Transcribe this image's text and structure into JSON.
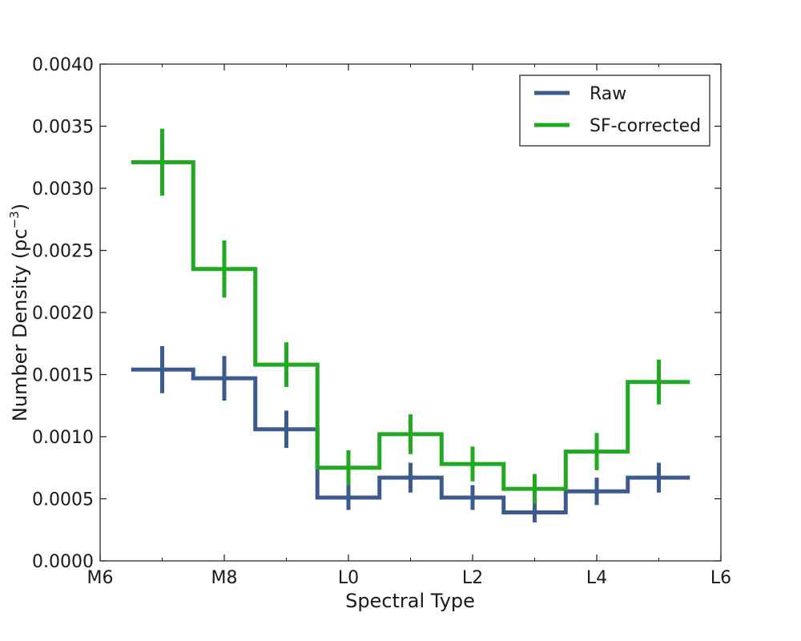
{
  "chart_data": {
    "type": "line",
    "subtype": "step-with-errorbars",
    "title": "",
    "xlabel": "Spectral Type",
    "ylabel": "Number Density (pc",
    "ylabel_superscript": "−3",
    "ylabel_suffix": ")",
    "x_ticks": [
      {
        "value": 6,
        "label": "M6"
      },
      {
        "value": 8,
        "label": "M8"
      },
      {
        "value": 10,
        "label": "L0"
      },
      {
        "value": 12,
        "label": "L2"
      },
      {
        "value": 14,
        "label": "L4"
      },
      {
        "value": 16,
        "label": "L6"
      }
    ],
    "y_ticks": [
      "0.0000",
      "0.0005",
      "0.0010",
      "0.0015",
      "0.0020",
      "0.0025",
      "0.0030",
      "0.0035",
      "0.0040"
    ],
    "xlim": [
      6,
      16
    ],
    "ylim": [
      0,
      0.004
    ],
    "grid": false,
    "legend_position": "top-right",
    "x": [
      7,
      8,
      9,
      10,
      11,
      12,
      13,
      14,
      15
    ],
    "series": [
      {
        "name": "Raw",
        "color": "#3d5a8e",
        "values": [
          0.00154,
          0.00147,
          0.00106,
          0.00051,
          0.00067,
          0.00051,
          0.00039,
          0.00056,
          0.00067
        ],
        "errors": [
          0.00019,
          0.00018,
          0.00015,
          0.0001,
          0.00012,
          0.0001,
          8e-05,
          0.00011,
          0.00012
        ]
      },
      {
        "name": "SF-corrected",
        "color": "#22a922",
        "values": [
          0.00321,
          0.00235,
          0.00158,
          0.00075,
          0.00102,
          0.00078,
          0.00058,
          0.00088,
          0.00144
        ],
        "errors": [
          0.00027,
          0.00023,
          0.00018,
          0.00014,
          0.00016,
          0.00014,
          0.00012,
          0.00015,
          0.00018
        ]
      }
    ]
  }
}
